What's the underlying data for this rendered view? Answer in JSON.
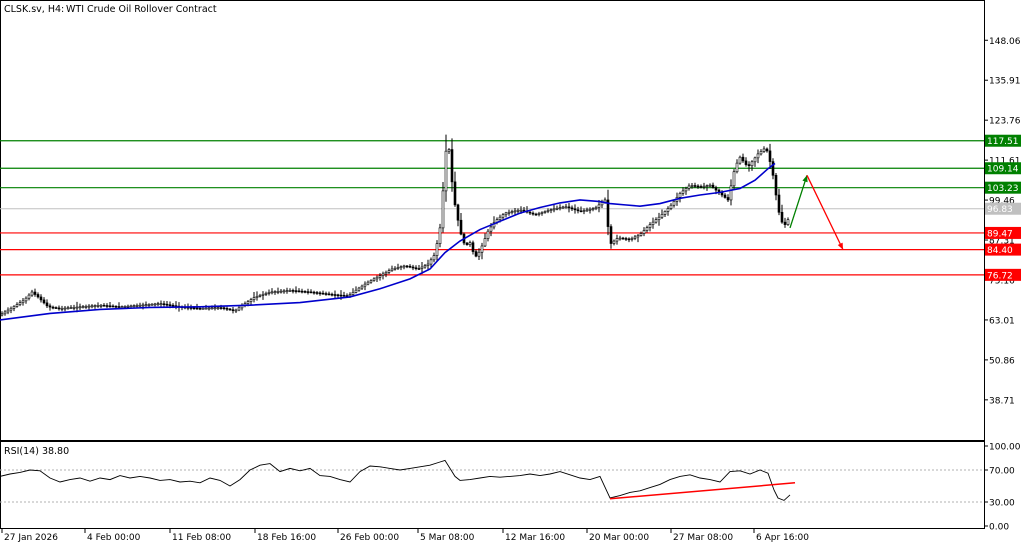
{
  "header": {
    "symbol": "CLSK.sv, H4:",
    "description": "WTI Crude Oil Rollover Contract"
  },
  "rsi": {
    "label": "RSI(14) 38.80",
    "period": 14,
    "value": 38.8,
    "levels": [
      30,
      70
    ],
    "axis_ticks": [
      "100.00",
      "70.00",
      "30.00",
      "0.00"
    ]
  },
  "colors": {
    "support": "#ff0000",
    "resistance": "#008000",
    "ma": "#0000cc",
    "candle": "#000000",
    "current_price": "#c0c0c0",
    "projection_up": "#008000",
    "projection_down": "#ff0000",
    "rsi_trendline": "#ff0000"
  },
  "chart_data": {
    "type": "candlestick",
    "title": "CLSK.sv, H4: WTI Crude Oil Rollover Contract",
    "ylim": [
      26.5,
      160
    ],
    "y_ticks": [
      "148.06",
      "135.91",
      "123.76",
      "111.61",
      "99.46",
      "87.31",
      "75.16",
      "63.01",
      "50.86",
      "38.71"
    ],
    "x_ticks": [
      "27 Jan 2026",
      "4 Feb 00:00",
      "11 Feb 08:00",
      "18 Feb 16:00",
      "26 Feb 00:00",
      "5 Mar 08:00",
      "12 Mar 16:00",
      "20 Mar 00:00",
      "27 Mar 08:00",
      "6 Apr 16:00"
    ],
    "current_price": "96.83",
    "resistance_levels": [
      {
        "label": "117.51",
        "value": 117.51
      },
      {
        "label": "109.14",
        "value": 109.14
      },
      {
        "label": "103.23",
        "value": 103.23
      }
    ],
    "support_levels": [
      {
        "label": "89.47",
        "value": 89.47
      },
      {
        "label": "84.40",
        "value": 84.4
      },
      {
        "label": "76.72",
        "value": 76.72
      }
    ],
    "price_path": [
      [
        0,
        64.5
      ],
      [
        8,
        66.0
      ],
      [
        16,
        67.5
      ],
      [
        24,
        69.0
      ],
      [
        32,
        71.5
      ],
      [
        38,
        70.0
      ],
      [
        48,
        67.0
      ],
      [
        60,
        66.5
      ],
      [
        80,
        67.0
      ],
      [
        100,
        67.5
      ],
      [
        120,
        67.0
      ],
      [
        140,
        67.5
      ],
      [
        160,
        68.0
      ],
      [
        180,
        67.0
      ],
      [
        200,
        66.5
      ],
      [
        220,
        66.8
      ],
      [
        235,
        65.8
      ],
      [
        245,
        68.0
      ],
      [
        255,
        70.0
      ],
      [
        270,
        71.5
      ],
      [
        290,
        72.0
      ],
      [
        310,
        71.5
      ],
      [
        330,
        70.8
      ],
      [
        348,
        70.3
      ],
      [
        358,
        72.5
      ],
      [
        368,
        74.5
      ],
      [
        380,
        76.5
      ],
      [
        392,
        78.5
      ],
      [
        405,
        79.5
      ],
      [
        418,
        78.5
      ],
      [
        428,
        80.0
      ],
      [
        435,
        83.0
      ],
      [
        440,
        91.0
      ],
      [
        444,
        106.0
      ],
      [
        447,
        118.5
      ],
      [
        450,
        113.0
      ],
      [
        453,
        101.0
      ],
      [
        457,
        95.0
      ],
      [
        460,
        90.0
      ],
      [
        465,
        85.5
      ],
      [
        470,
        86.5
      ],
      [
        475,
        82.0
      ],
      [
        480,
        84.0
      ],
      [
        488,
        90.0
      ],
      [
        495,
        93.0
      ],
      [
        505,
        95.5
      ],
      [
        520,
        96.5
      ],
      [
        535,
        95.0
      ],
      [
        550,
        96.5
      ],
      [
        565,
        97.5
      ],
      [
        580,
        96.0
      ],
      [
        595,
        97.0
      ],
      [
        605,
        99.5
      ],
      [
        610,
        86.0
      ],
      [
        618,
        88.0
      ],
      [
        630,
        87.5
      ],
      [
        640,
        89.0
      ],
      [
        650,
        92.0
      ],
      [
        660,
        94.5
      ],
      [
        670,
        97.5
      ],
      [
        680,
        101.5
      ],
      [
        690,
        104.0
      ],
      [
        700,
        103.5
      ],
      [
        710,
        104.0
      ],
      [
        720,
        101.5
      ],
      [
        728,
        99.5
      ],
      [
        735,
        109.5
      ],
      [
        740,
        112.5
      ],
      [
        748,
        109.5
      ],
      [
        758,
        113.5
      ],
      [
        766,
        115.5
      ],
      [
        772,
        109.0
      ],
      [
        776,
        101.0
      ],
      [
        780,
        94.0
      ],
      [
        784,
        91.5
      ],
      [
        790,
        94.5
      ]
    ],
    "moving_average": [
      [
        0,
        63.0
      ],
      [
        50,
        65.0
      ],
      [
        100,
        66.2
      ],
      [
        150,
        66.8
      ],
      [
        200,
        67.0
      ],
      [
        250,
        67.5
      ],
      [
        300,
        68.3
      ],
      [
        350,
        70.0
      ],
      [
        380,
        72.5
      ],
      [
        410,
        75.5
      ],
      [
        430,
        78.5
      ],
      [
        445,
        83.5
      ],
      [
        460,
        87.0
      ],
      [
        480,
        90.5
      ],
      [
        500,
        93.0
      ],
      [
        520,
        95.5
      ],
      [
        540,
        97.2
      ],
      [
        560,
        98.6
      ],
      [
        580,
        99.5
      ],
      [
        600,
        99.0
      ],
      [
        610,
        98.4
      ],
      [
        625,
        98.0
      ],
      [
        640,
        97.6
      ],
      [
        660,
        98.4
      ],
      [
        680,
        100.0
      ],
      [
        700,
        101.0
      ],
      [
        720,
        101.8
      ],
      [
        740,
        103.0
      ],
      [
        755,
        105.5
      ],
      [
        768,
        109.0
      ],
      [
        775,
        110.6
      ]
    ],
    "projection": [
      {
        "x": 790,
        "y": 91.0
      },
      {
        "x": 807,
        "y": 107.0
      },
      {
        "x": 843,
        "y": 84.4
      }
    ],
    "rsi_series": [
      [
        0,
        62
      ],
      [
        10,
        65
      ],
      [
        20,
        67
      ],
      [
        30,
        70
      ],
      [
        40,
        69
      ],
      [
        50,
        60
      ],
      [
        60,
        55
      ],
      [
        70,
        58
      ],
      [
        80,
        60
      ],
      [
        90,
        56
      ],
      [
        100,
        60
      ],
      [
        110,
        58
      ],
      [
        120,
        63
      ],
      [
        130,
        60
      ],
      [
        140,
        62
      ],
      [
        150,
        60
      ],
      [
        160,
        57
      ],
      [
        170,
        58
      ],
      [
        180,
        55
      ],
      [
        190,
        56
      ],
      [
        200,
        54
      ],
      [
        210,
        60
      ],
      [
        220,
        57
      ],
      [
        230,
        50
      ],
      [
        240,
        58
      ],
      [
        250,
        70
      ],
      [
        260,
        76
      ],
      [
        270,
        78
      ],
      [
        280,
        68
      ],
      [
        290,
        72
      ],
      [
        300,
        69
      ],
      [
        310,
        72
      ],
      [
        320,
        63
      ],
      [
        330,
        62
      ],
      [
        340,
        58
      ],
      [
        350,
        55
      ],
      [
        360,
        68
      ],
      [
        370,
        75
      ],
      [
        380,
        74
      ],
      [
        390,
        72
      ],
      [
        400,
        70
      ],
      [
        410,
        72
      ],
      [
        420,
        74
      ],
      [
        430,
        76
      ],
      [
        440,
        80
      ],
      [
        445,
        82
      ],
      [
        450,
        72
      ],
      [
        455,
        62
      ],
      [
        460,
        57
      ],
      [
        470,
        58
      ],
      [
        480,
        60
      ],
      [
        490,
        62
      ],
      [
        500,
        61
      ],
      [
        510,
        62
      ],
      [
        520,
        63
      ],
      [
        530,
        65
      ],
      [
        540,
        63
      ],
      [
        550,
        65
      ],
      [
        560,
        68
      ],
      [
        570,
        64
      ],
      [
        580,
        60
      ],
      [
        590,
        58
      ],
      [
        600,
        62
      ],
      [
        610,
        35
      ],
      [
        620,
        38
      ],
      [
        630,
        42
      ],
      [
        640,
        44
      ],
      [
        650,
        48
      ],
      [
        660,
        52
      ],
      [
        670,
        58
      ],
      [
        680,
        62
      ],
      [
        690,
        64
      ],
      [
        700,
        60
      ],
      [
        710,
        58
      ],
      [
        720,
        55
      ],
      [
        730,
        68
      ],
      [
        740,
        69
      ],
      [
        750,
        65
      ],
      [
        760,
        70
      ],
      [
        768,
        66
      ],
      [
        774,
        45
      ],
      [
        778,
        35
      ],
      [
        784,
        32
      ],
      [
        790,
        38.8
      ]
    ],
    "rsi_trendline": [
      [
        610,
        34
      ],
      [
        795,
        54
      ]
    ]
  }
}
